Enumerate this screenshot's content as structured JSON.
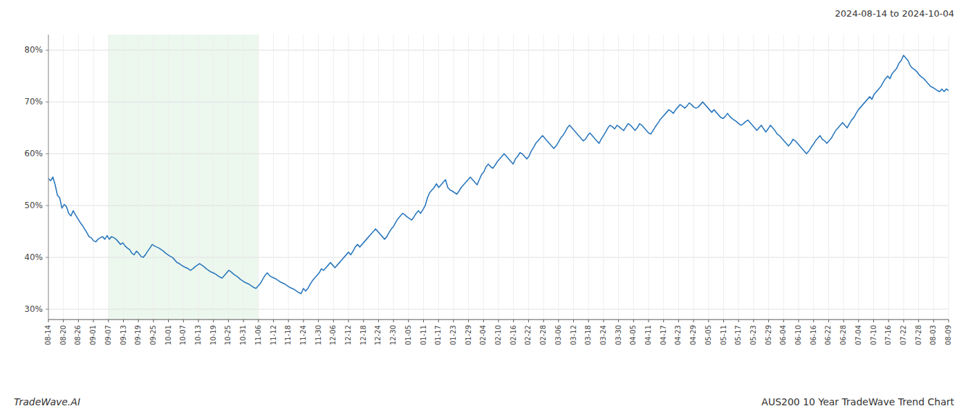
{
  "chart_data": {
    "type": "line",
    "title": "AUS200 10 Year TradeWave Trend Chart",
    "subtitle": "2024-08-14 to 2024-10-04",
    "annotations": [
      "TradeWave.AI"
    ],
    "color": "#2876bc",
    "grid": true,
    "highlight": {
      "x": [
        26.6,
        93.1
      ],
      "color": "#d4edda"
    },
    "xlim": [
      0,
      399
    ],
    "xticks": [
      {
        "value": 0,
        "label": "08-14"
      },
      {
        "value": 6.65,
        "label": "08-20"
      },
      {
        "value": 13.3,
        "label": "08-26"
      },
      {
        "value": 19.95,
        "label": "09-01"
      },
      {
        "value": 26.6,
        "label": "09-07"
      },
      {
        "value": 33.25,
        "label": "09-13"
      },
      {
        "value": 39.9,
        "label": "09-19"
      },
      {
        "value": 46.55,
        "label": "09-25"
      },
      {
        "value": 53.2,
        "label": "10-01"
      },
      {
        "value": 59.85,
        "label": "10-07"
      },
      {
        "value": 66.5,
        "label": "10-13"
      },
      {
        "value": 73.15,
        "label": "10-19"
      },
      {
        "value": 79.8,
        "label": "10-25"
      },
      {
        "value": 86.45,
        "label": "10-31"
      },
      {
        "value": 93.1,
        "label": "11-06"
      },
      {
        "value": 99.75,
        "label": "11-12"
      },
      {
        "value": 106.4,
        "label": "11-18"
      },
      {
        "value": 113.05,
        "label": "11-24"
      },
      {
        "value": 119.7,
        "label": "11-30"
      },
      {
        "value": 126.35,
        "label": "12-06"
      },
      {
        "value": 133,
        "label": "12-12"
      },
      {
        "value": 139.65,
        "label": "12-18"
      },
      {
        "value": 146.3,
        "label": "12-24"
      },
      {
        "value": 152.95,
        "label": "12-30"
      },
      {
        "value": 159.6,
        "label": "01-05"
      },
      {
        "value": 166.25,
        "label": "01-11"
      },
      {
        "value": 172.9,
        "label": "01-17"
      },
      {
        "value": 179.55,
        "label": "01-23"
      },
      {
        "value": 186.2,
        "label": "01-29"
      },
      {
        "value": 192.85,
        "label": "02-04"
      },
      {
        "value": 199.5,
        "label": "02-10"
      },
      {
        "value": 206.15,
        "label": "02-16"
      },
      {
        "value": 212.8,
        "label": "02-22"
      },
      {
        "value": 219.45,
        "label": "02-28"
      },
      {
        "value": 226.1,
        "label": "03-06"
      },
      {
        "value": 232.75,
        "label": "03-12"
      },
      {
        "value": 239.4,
        "label": "03-18"
      },
      {
        "value": 246.05,
        "label": "03-24"
      },
      {
        "value": 252.7,
        "label": "03-30"
      },
      {
        "value": 259.35,
        "label": "04-05"
      },
      {
        "value": 266,
        "label": "04-11"
      },
      {
        "value": 272.65,
        "label": "04-17"
      },
      {
        "value": 279.3,
        "label": "04-23"
      },
      {
        "value": 285.95,
        "label": "04-29"
      },
      {
        "value": 292.6,
        "label": "05-05"
      },
      {
        "value": 299.25,
        "label": "05-11"
      },
      {
        "value": 305.9,
        "label": "05-17"
      },
      {
        "value": 312.55,
        "label": "05-23"
      },
      {
        "value": 319.2,
        "label": "05-29"
      },
      {
        "value": 325.85,
        "label": "06-04"
      },
      {
        "value": 332.5,
        "label": "06-10"
      },
      {
        "value": 339.15,
        "label": "06-16"
      },
      {
        "value": 345.8,
        "label": "06-22"
      },
      {
        "value": 352.45,
        "label": "06-28"
      },
      {
        "value": 359.1,
        "label": "07-04"
      },
      {
        "value": 365.75,
        "label": "07-10"
      },
      {
        "value": 372.4,
        "label": "07-16"
      },
      {
        "value": 379.05,
        "label": "07-22"
      },
      {
        "value": 385.7,
        "label": "07-28"
      },
      {
        "value": 392.35,
        "label": "08-03"
      },
      {
        "value": 399,
        "label": "08-09"
      }
    ],
    "ylim": [
      28,
      83
    ],
    "yticks": [
      {
        "value": 30,
        "label": "30%"
      },
      {
        "value": 40,
        "label": "40%"
      },
      {
        "value": 50,
        "label": "50%"
      },
      {
        "value": 60,
        "label": "60%"
      },
      {
        "value": 70,
        "label": "70%"
      },
      {
        "value": 80,
        "label": "80%"
      }
    ],
    "x": [
      0,
      1,
      2,
      3,
      4,
      5,
      6,
      7,
      8,
      9,
      10,
      11,
      12,
      13,
      14,
      15,
      16,
      17,
      18,
      19,
      20,
      21,
      22,
      23,
      24,
      25,
      26,
      27,
      28,
      29,
      30,
      31,
      32,
      33,
      34,
      35,
      36,
      37,
      38,
      39,
      40,
      41,
      42,
      43,
      44,
      45,
      46,
      47,
      48,
      49,
      50,
      51,
      52,
      53,
      54,
      55,
      56,
      57,
      58,
      59,
      60,
      61,
      62,
      63,
      64,
      65,
      66,
      67,
      68,
      69,
      70,
      71,
      72,
      73,
      74,
      75,
      76,
      77,
      78,
      79,
      80,
      81,
      82,
      83,
      84,
      85,
      86,
      87,
      88,
      89,
      90,
      91,
      92,
      93,
      94,
      95,
      96,
      97,
      98,
      99,
      100,
      101,
      102,
      103,
      104,
      105,
      106,
      107,
      108,
      109,
      110,
      111,
      112,
      113,
      114,
      115,
      116,
      117,
      118,
      119,
      120,
      121,
      122,
      123,
      124,
      125,
      126,
      127,
      128,
      129,
      130,
      131,
      132,
      133,
      134,
      135,
      136,
      137,
      138,
      139,
      140,
      141,
      142,
      143,
      144,
      145,
      146,
      147,
      148,
      149,
      150,
      151,
      152,
      153,
      154,
      155,
      156,
      157,
      158,
      159,
      160,
      161,
      162,
      163,
      164,
      165,
      166,
      167,
      168,
      169,
      170,
      171,
      172,
      173,
      174,
      175,
      176,
      177,
      178,
      179,
      180,
      181,
      182,
      183,
      184,
      185,
      186,
      187,
      188,
      189,
      190,
      191,
      192,
      193,
      194,
      195,
      196,
      197,
      198,
      199,
      200,
      201,
      202,
      203,
      204,
      205,
      206,
      207,
      208,
      209,
      210,
      211,
      212,
      213,
      214,
      215,
      216,
      217,
      218,
      219,
      220,
      221,
      222,
      223,
      224,
      225,
      226,
      227,
      228,
      229,
      230,
      231,
      232,
      233,
      234,
      235,
      236,
      237,
      238,
      239,
      240,
      241,
      242,
      243,
      244,
      245,
      246,
      247,
      248,
      249,
      250,
      251,
      252,
      253,
      254,
      255,
      256,
      257,
      258,
      259,
      260,
      261,
      262,
      263,
      264,
      265,
      266,
      267,
      268,
      269,
      270,
      271,
      272,
      273,
      274,
      275,
      276,
      277,
      278,
      279,
      280,
      281,
      282,
      283,
      284,
      285,
      286,
      287,
      288,
      289,
      290,
      291,
      292,
      293,
      294,
      295,
      296,
      297,
      298,
      299,
      300,
      301,
      302,
      303,
      304,
      305,
      306,
      307,
      308,
      309,
      310,
      311,
      312,
      313,
      314,
      315,
      316,
      317,
      318,
      319,
      320,
      321,
      322,
      323,
      324,
      325,
      326,
      327,
      328,
      329,
      330,
      331,
      332,
      333,
      334,
      335,
      336,
      337,
      338,
      339,
      340,
      341,
      342,
      343,
      344,
      345,
      346,
      347,
      348,
      349,
      350,
      351,
      352,
      353,
      354,
      355,
      356,
      357,
      358,
      359,
      360,
      361,
      362,
      363,
      364,
      365,
      366,
      367,
      368,
      369,
      370,
      371,
      372,
      373,
      374,
      375,
      376,
      377,
      378,
      379,
      380,
      381,
      382,
      383,
      384,
      385,
      386,
      387,
      388,
      389,
      390,
      391,
      392,
      393,
      394,
      395,
      396,
      397,
      398,
      399
    ],
    "values": [
      55.2,
      54.8,
      55.5,
      54.0,
      52.0,
      51.5,
      49.5,
      50.2,
      49.8,
      48.5,
      48.0,
      49.0,
      48.2,
      47.5,
      46.8,
      46.2,
      45.5,
      44.8,
      44.0,
      43.8,
      43.2,
      43.0,
      43.5,
      43.8,
      44.0,
      43.5,
      44.2,
      43.5,
      44.0,
      43.8,
      43.5,
      43.0,
      42.5,
      42.8,
      42.2,
      41.8,
      41.5,
      40.8,
      40.5,
      41.2,
      40.8,
      40.2,
      40.0,
      40.5,
      41.2,
      41.8,
      42.5,
      42.2,
      42.0,
      41.8,
      41.5,
      41.2,
      40.8,
      40.5,
      40.2,
      40.0,
      39.5,
      39.0,
      38.8,
      38.5,
      38.2,
      38.0,
      37.8,
      37.5,
      37.8,
      38.2,
      38.5,
      38.8,
      38.5,
      38.2,
      37.8,
      37.5,
      37.2,
      37.0,
      36.8,
      36.5,
      36.2,
      36.0,
      36.5,
      37.0,
      37.5,
      37.2,
      36.8,
      36.5,
      36.2,
      35.8,
      35.5,
      35.2,
      35.0,
      34.8,
      34.5,
      34.2,
      34.0,
      34.5,
      35.0,
      35.8,
      36.5,
      37.0,
      36.5,
      36.2,
      36.0,
      35.8,
      35.5,
      35.2,
      35.0,
      34.8,
      34.5,
      34.2,
      34.0,
      33.8,
      33.5,
      33.2,
      33.0,
      34.0,
      33.5,
      34.0,
      34.8,
      35.5,
      36.0,
      36.5,
      37.0,
      37.8,
      37.5,
      38.0,
      38.5,
      39.0,
      38.5,
      38.0,
      38.5,
      39.0,
      39.5,
      40.0,
      40.5,
      41.0,
      40.5,
      41.2,
      42.0,
      42.5,
      42.0,
      42.5,
      43.0,
      43.5,
      44.0,
      44.5,
      45.0,
      45.5,
      45.0,
      44.5,
      44.0,
      43.5,
      44.0,
      44.8,
      45.5,
      46.0,
      46.8,
      47.5,
      48.0,
      48.5,
      48.2,
      47.8,
      47.5,
      47.2,
      47.8,
      48.5,
      49.0,
      48.5,
      49.2,
      50.0,
      51.5,
      52.5,
      53.0,
      53.5,
      54.2,
      53.5,
      54.0,
      54.5,
      55.0,
      53.5,
      53.0,
      52.8,
      52.5,
      52.2,
      52.8,
      53.5,
      54.0,
      54.5,
      55.0,
      55.5,
      55.0,
      54.5,
      54.0,
      55.0,
      56.0,
      56.5,
      57.5,
      58.0,
      57.5,
      57.2,
      57.8,
      58.5,
      59.0,
      59.5,
      60.0,
      59.5,
      59.0,
      58.5,
      58.0,
      59.0,
      59.5,
      60.2,
      60.0,
      59.5,
      59.0,
      59.5,
      60.5,
      61.2,
      62.0,
      62.5,
      63.0,
      63.5,
      63.0,
      62.5,
      62.0,
      61.5,
      61.0,
      61.5,
      62.2,
      63.0,
      63.5,
      64.2,
      65.0,
      65.5,
      65.0,
      64.5,
      64.0,
      63.5,
      63.0,
      62.5,
      62.8,
      63.5,
      64.0,
      63.5,
      63.0,
      62.5,
      62.0,
      62.8,
      63.5,
      64.2,
      65.0,
      65.5,
      65.2,
      64.8,
      65.5,
      65.2,
      64.8,
      64.5,
      65.2,
      65.8,
      65.5,
      65.0,
      64.5,
      65.0,
      65.8,
      65.5,
      65.0,
      64.5,
      64.0,
      63.8,
      64.5,
      65.2,
      65.8,
      66.5,
      67.0,
      67.5,
      68.0,
      68.5,
      68.2,
      67.8,
      68.5,
      69.0,
      69.5,
      69.2,
      68.8,
      69.2,
      69.8,
      69.5,
      69.0,
      68.8,
      69.0,
      69.5,
      70.0,
      69.5,
      69.0,
      68.5,
      68.0,
      68.5,
      68.0,
      67.5,
      67.0,
      66.8,
      67.2,
      67.8,
      67.2,
      66.8,
      66.5,
      66.2,
      65.8,
      65.5,
      65.8,
      66.2,
      66.5,
      66.0,
      65.5,
      65.0,
      64.5,
      65.0,
      65.5,
      64.8,
      64.2,
      64.8,
      65.5,
      65.0,
      64.5,
      63.8,
      63.5,
      63.0,
      62.5,
      62.0,
      61.5,
      62.0,
      62.8,
      62.5,
      62.0,
      61.5,
      61.0,
      60.5,
      60.0,
      60.5,
      61.2,
      61.8,
      62.5,
      63.0,
      63.5,
      62.8,
      62.5,
      62.0,
      62.5,
      63.0,
      63.8,
      64.5,
      65.0,
      65.5,
      66.0,
      65.5,
      65.0,
      65.8,
      66.5,
      67.0,
      67.8,
      68.5,
      69.0,
      69.5,
      70.0,
      70.5,
      71.0,
      70.5,
      71.5,
      72.0,
      72.5,
      73.0,
      73.8,
      74.5,
      75.0,
      74.5,
      75.5,
      76.0,
      76.5,
      77.5,
      78.0,
      79.0,
      78.5,
      78.0,
      77.0,
      76.5,
      76.2,
      75.8,
      75.2,
      74.8,
      74.5,
      74.0,
      73.5,
      73.0,
      72.8,
      72.5,
      72.2,
      72.0,
      72.5,
      72.0,
      72.5,
      72.2
    ]
  }
}
